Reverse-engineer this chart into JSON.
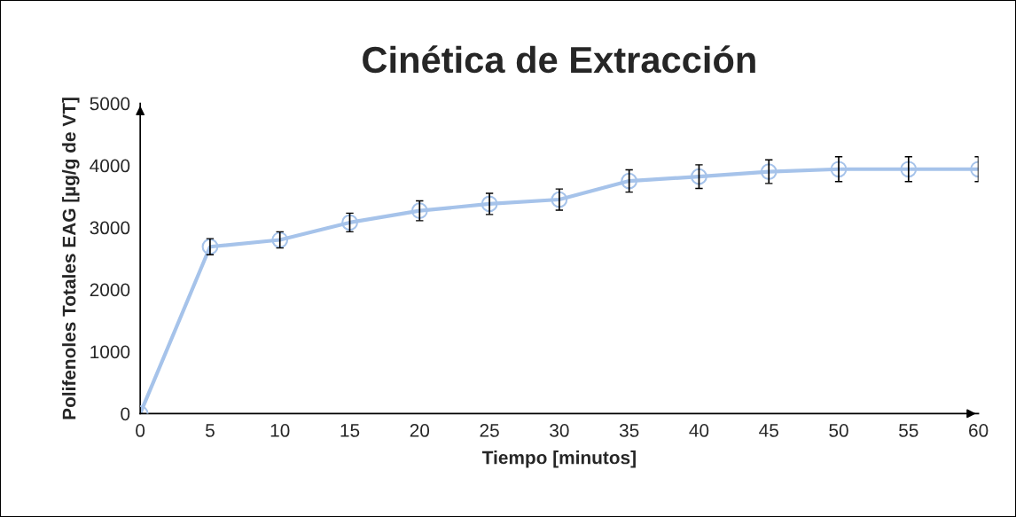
{
  "chart_data": {
    "type": "line",
    "title": "Cinética de Extracción",
    "xlabel": "Tiempo [minutos]",
    "ylabel": "Polifenoles Totales EAG [µg/g de VT]",
    "x": [
      0,
      5,
      10,
      15,
      20,
      25,
      30,
      35,
      40,
      45,
      50,
      55,
      60
    ],
    "series": [
      {
        "color": "#a6c3ea",
        "values": [
          0,
          2690,
          2800,
          3080,
          3270,
          3380,
          3450,
          3750,
          3820,
          3900,
          3940,
          3940,
          3940
        ],
        "errors": [
          null,
          130,
          130,
          150,
          160,
          170,
          170,
          180,
          190,
          190,
          200,
          200,
          200
        ]
      }
    ],
    "xlim": [
      0,
      60
    ],
    "ylim": [
      0,
      5000
    ],
    "xticks": [
      0,
      5,
      10,
      15,
      20,
      25,
      30,
      35,
      40,
      45,
      50,
      55,
      60
    ],
    "yticks": [
      0,
      1000,
      2000,
      3000,
      4000,
      5000
    ],
    "grid": false,
    "legend": false,
    "marker": "circle",
    "line_style": "solid"
  }
}
